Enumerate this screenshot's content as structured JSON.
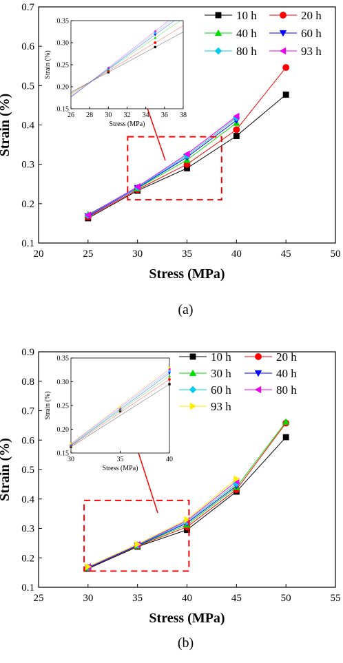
{
  "chart_data": [
    {
      "type": "line",
      "caption": "(a)",
      "xlabel": "Stress (MPa)",
      "ylabel": "Strain (%)",
      "xlim": [
        20,
        50
      ],
      "ylim": [
        0.1,
        0.7
      ],
      "xticks": [
        20,
        25,
        30,
        35,
        40,
        45,
        50
      ],
      "yticks": [
        0.1,
        0.2,
        0.3,
        0.4,
        0.5,
        0.6,
        0.7
      ],
      "grid": false,
      "legend_position": "top-right",
      "series": [
        {
          "name": "10 h",
          "color": "#000000",
          "marker": "square",
          "x": [
            25,
            30,
            35,
            40,
            45
          ],
          "values": [
            0.163,
            0.233,
            0.29,
            0.372,
            0.477
          ]
        },
        {
          "name": "20 h",
          "color": "#ff0000",
          "marker": "circle",
          "x": [
            25,
            30,
            35,
            40,
            45
          ],
          "values": [
            0.166,
            0.236,
            0.3,
            0.388,
            0.546
          ]
        },
        {
          "name": "40 h",
          "color": "#00dd00",
          "marker": "triangle-up",
          "x": [
            25,
            30,
            35,
            40
          ],
          "values": [
            0.173,
            0.239,
            0.311,
            0.405
          ]
        },
        {
          "name": "60 h",
          "color": "#0000ff",
          "marker": "triangle-down",
          "x": [
            25,
            30,
            35,
            40
          ],
          "values": [
            0.168,
            0.24,
            0.318,
            0.412
          ]
        },
        {
          "name": "80 h",
          "color": "#00ccee",
          "marker": "diamond",
          "x": [
            25,
            30,
            35,
            40
          ],
          "values": [
            0.17,
            0.241,
            0.322,
            0.418
          ]
        },
        {
          "name": "93 h",
          "color": "#ee00ee",
          "marker": "triangle-left",
          "x": [
            25,
            30,
            35,
            40
          ],
          "values": [
            0.171,
            0.243,
            0.326,
            0.422
          ]
        }
      ],
      "inset": {
        "xlabel": "Stress (MPa)",
        "ylabel": "Strain (%)",
        "xlim": [
          26,
          38
        ],
        "ylim": [
          0.15,
          0.35
        ],
        "xticks": [
          26,
          28,
          30,
          32,
          34,
          36,
          38
        ],
        "yticks": [
          0.15,
          0.2,
          0.25,
          0.3,
          0.35
        ],
        "x": [
          30,
          35
        ]
      },
      "zoom_box": {
        "xlim": [
          29,
          38.5
        ],
        "ylim": [
          0.21,
          0.37
        ]
      }
    },
    {
      "type": "line",
      "caption": "(b)",
      "xlabel": "Stress (MPa)",
      "ylabel": "Strain (%)",
      "xlim": [
        25,
        55
      ],
      "ylim": [
        0.1,
        0.9
      ],
      "xticks": [
        25,
        30,
        35,
        40,
        45,
        50,
        55
      ],
      "yticks": [
        0.1,
        0.2,
        0.3,
        0.4,
        0.5,
        0.6,
        0.7,
        0.8,
        0.9
      ],
      "grid": false,
      "legend_position": "top-right",
      "series": [
        {
          "name": "10 h",
          "color": "#000000",
          "marker": "square",
          "x": [
            30,
            35,
            40,
            45,
            50
          ],
          "values": [
            0.163,
            0.238,
            0.295,
            0.425,
            0.61
          ]
        },
        {
          "name": "20 h",
          "color": "#ff0000",
          "marker": "circle",
          "x": [
            30,
            35,
            40,
            45,
            50
          ],
          "values": [
            0.165,
            0.24,
            0.305,
            0.432,
            0.658
          ]
        },
        {
          "name": "30 h",
          "color": "#00dd00",
          "marker": "triangle-up",
          "x": [
            30,
            35,
            40,
            45,
            50
          ],
          "values": [
            0.166,
            0.241,
            0.312,
            0.44,
            0.662
          ]
        },
        {
          "name": "40 h",
          "color": "#0000ff",
          "marker": "triangle-down",
          "x": [
            30,
            35,
            40,
            45
          ],
          "values": [
            0.166,
            0.242,
            0.318,
            0.445
          ]
        },
        {
          "name": "60 h",
          "color": "#00ccee",
          "marker": "diamond",
          "x": [
            30,
            35,
            40,
            45
          ],
          "values": [
            0.168,
            0.244,
            0.322,
            0.452
          ]
        },
        {
          "name": "80 h",
          "color": "#ee00ee",
          "marker": "triangle-left",
          "x": [
            30,
            35,
            40,
            45
          ],
          "values": [
            0.169,
            0.245,
            0.326,
            0.46
          ]
        },
        {
          "name": "93 h",
          "color": "#ffee00",
          "marker": "triangle-right",
          "x": [
            30,
            35,
            40,
            45
          ],
          "values": [
            0.17,
            0.246,
            0.33,
            0.468
          ]
        }
      ],
      "inset": {
        "xlabel": "Stress (MPa)",
        "ylabel": "Strain (%)",
        "xlim": [
          30,
          40
        ],
        "ylim": [
          0.15,
          0.35
        ],
        "xticks": [
          30,
          35,
          40
        ],
        "yticks": [
          0.15,
          0.2,
          0.25,
          0.3,
          0.35
        ],
        "x": [
          30,
          35,
          40
        ]
      },
      "zoom_box": {
        "xlim": [
          29.6,
          40.2
        ],
        "ylim": [
          0.155,
          0.395
        ]
      }
    }
  ]
}
